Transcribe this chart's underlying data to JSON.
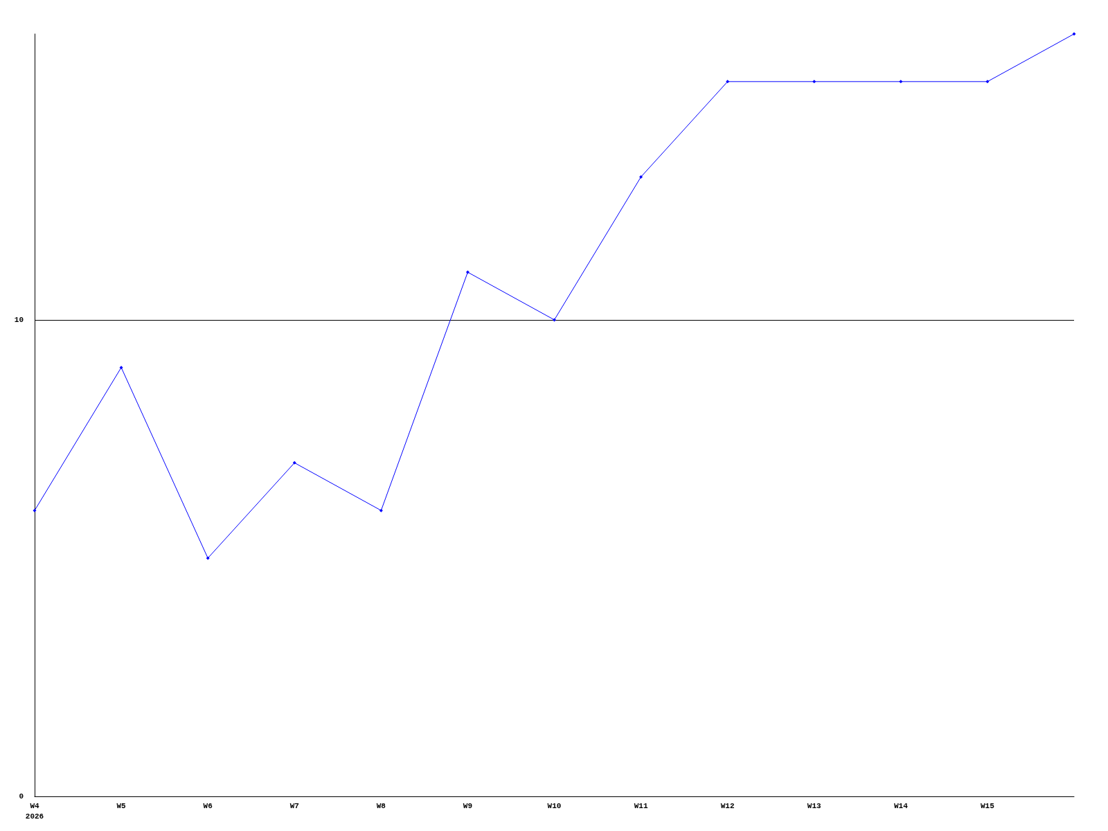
{
  "chart_data": {
    "type": "line",
    "categories": [
      "W4\n2026",
      "W5",
      "W6",
      "W7",
      "W8",
      "W9",
      "W10",
      "W11",
      "W12",
      "W13",
      "W14",
      "W15",
      null
    ],
    "series": [
      {
        "color": "#0000ff",
        "values": [
          6,
          9,
          5,
          7,
          6,
          11,
          10,
          13,
          15,
          15,
          15,
          15,
          16
        ]
      }
    ],
    "ylim": [
      0,
      16
    ],
    "yticks": [
      0,
      10
    ],
    "grid": "y",
    "marker": "diamond",
    "line_style": "solid"
  }
}
